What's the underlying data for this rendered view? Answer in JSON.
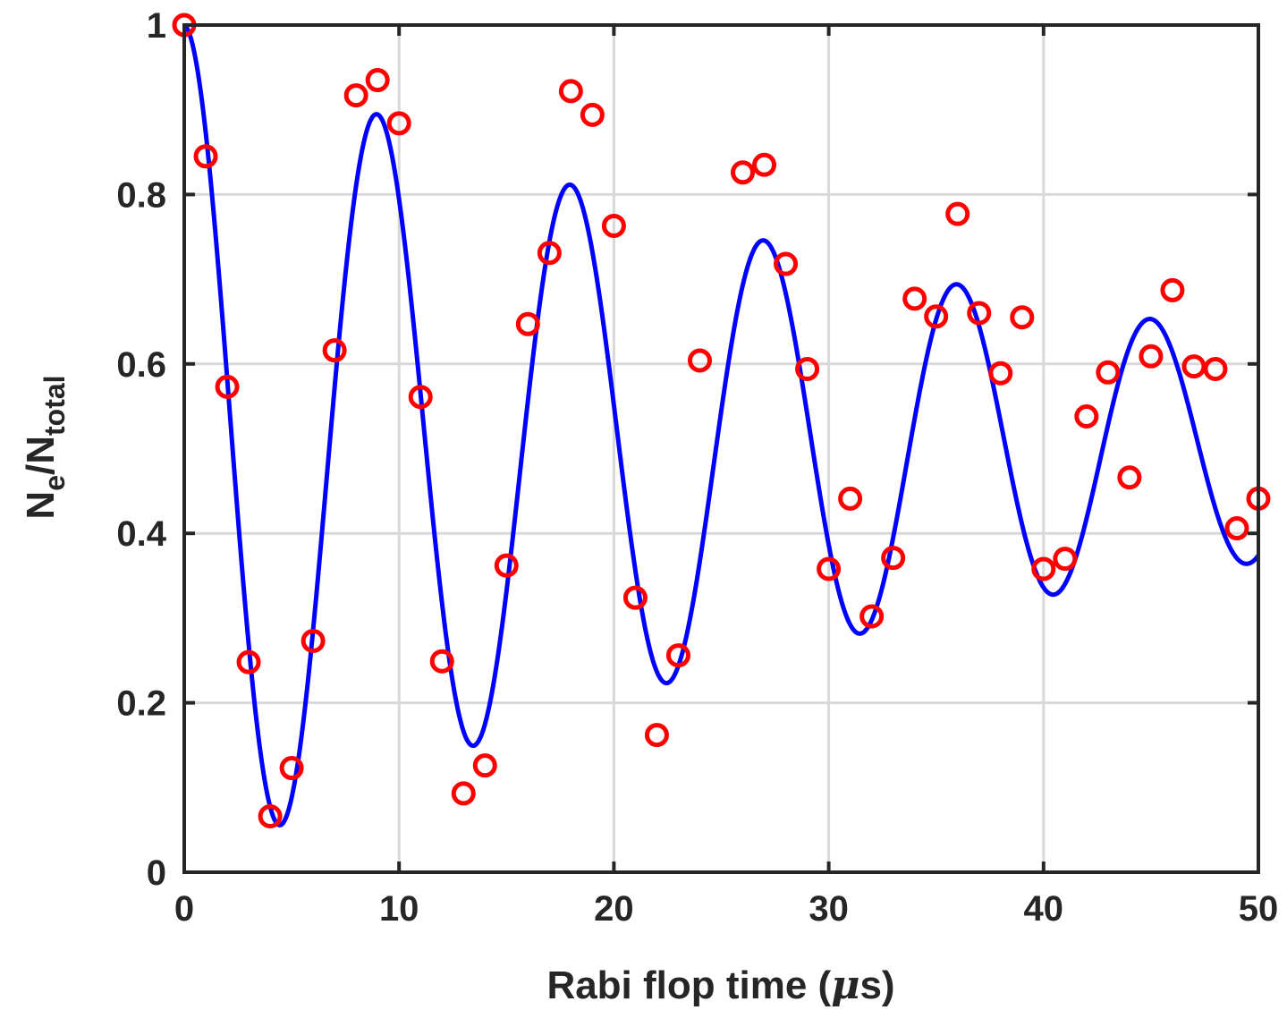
{
  "chart_data": {
    "type": "scatter",
    "xlabel": "Rabi flop time (μs)",
    "ylabel": "N_e/N_total",
    "ylabel_parts": {
      "n1": "N",
      "sub1": "e",
      "slash": "/N",
      "sub2": "total"
    },
    "xlabel_parts": {
      "prefix": "Rabi flop time (",
      "mu": "μ",
      "suffix": "s)"
    },
    "xlim": [
      0,
      50
    ],
    "ylim": [
      0,
      1
    ],
    "x_ticks": [
      0,
      10,
      20,
      30,
      40,
      50
    ],
    "y_ticks": [
      0,
      0.2,
      0.4,
      0.6,
      0.8,
      1
    ],
    "y_tick_labels": [
      "0",
      "0.2",
      "0.4",
      "0.6",
      "0.8",
      "1"
    ],
    "grid": true,
    "colors": {
      "points": "#ff0000",
      "fit": "#0000ff",
      "grid": "#d9d9d9",
      "axes": "#262626"
    },
    "series": [
      {
        "type": "scatter",
        "marker": "circle-open",
        "x": [
          0,
          1,
          2,
          3,
          4,
          5,
          6,
          7,
          8,
          9,
          10,
          11,
          12,
          13,
          14,
          15,
          16,
          17,
          18,
          19,
          20,
          21,
          22,
          23,
          24,
          26,
          27,
          28,
          29,
          30,
          31,
          32,
          33,
          34,
          35,
          36,
          37,
          38,
          39,
          40,
          41,
          42,
          43,
          44,
          45,
          46,
          47,
          48,
          49,
          50
        ],
        "y": [
          1.0,
          0.845,
          0.573,
          0.248,
          0.066,
          0.123,
          0.273,
          0.616,
          0.917,
          0.935,
          0.884,
          0.561,
          0.249,
          0.093,
          0.126,
          0.362,
          0.647,
          0.731,
          0.922,
          0.894,
          0.763,
          0.324,
          0.162,
          0.256,
          0.604,
          0.826,
          0.835,
          0.718,
          0.594,
          0.358,
          0.441,
          0.302,
          0.371,
          0.677,
          0.656,
          0.777,
          0.66,
          0.589,
          0.655,
          0.358,
          0.37,
          0.538,
          0.59,
          0.466,
          0.609,
          0.687,
          0.597,
          0.594,
          0.406,
          0.441
        ]
      },
      {
        "type": "line",
        "model": "damped-cosine",
        "offset": 0.5,
        "amplitude": 0.5,
        "period": 9.0,
        "decay_time": 38,
        "phase_drift": 0.01,
        "x_range": [
          0,
          50
        ]
      }
    ]
  }
}
